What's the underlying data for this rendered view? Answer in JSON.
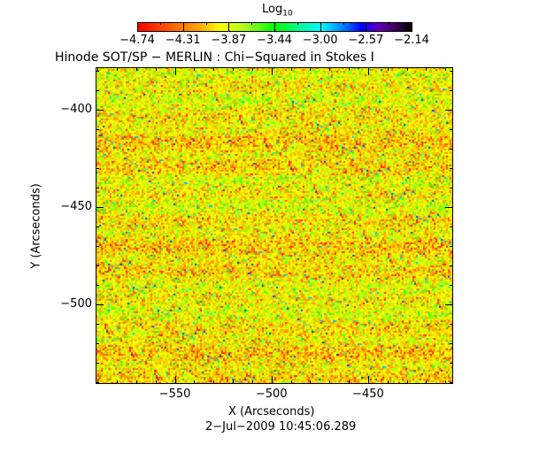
{
  "chart_data": {
    "type": "heatmap",
    "title": "Hinode SOT/SP − MERLIN : Chi−Squared in Stokes I",
    "xlabel": "X (Arcseconds)",
    "ylabel": "Y (Arcseconds)",
    "xlim": [
      -591,
      -406
    ],
    "ylim": [
      -541,
      -378
    ],
    "xticks": [
      {
        "value": -550,
        "label": "−550"
      },
      {
        "value": -500,
        "label": "−500"
      },
      {
        "value": -450,
        "label": "−450"
      }
    ],
    "yticks": [
      {
        "value": -400,
        "label": "−400"
      },
      {
        "value": -450,
        "label": "−450"
      },
      {
        "value": -500,
        "label": "−500"
      }
    ],
    "colorbar": {
      "title": "Log",
      "title_subscript": "10",
      "range": [
        -4.74,
        -2.14
      ],
      "ticks": [
        "−4.74",
        "−4.31",
        "−3.87",
        "−3.44",
        "−3.00",
        "−2.57",
        "−2.14"
      ]
    },
    "timestamp": "2−Jul−2009  10:45:06.289"
  }
}
